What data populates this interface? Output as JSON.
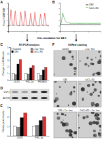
{
  "chart_data": [
    {
      "type": "line",
      "y_label": "Fura-2 F340/F380",
      "tick_labels": false,
      "x": [
        0,
        1,
        2,
        3,
        4,
        5,
        6,
        7,
        8,
        9,
        10,
        11,
        12,
        13,
        14,
        15,
        16,
        17,
        18,
        19,
        20,
        21,
        22,
        23,
        24,
        25,
        26,
        27,
        28,
        29
      ],
      "xlim": [
        0,
        29
      ],
      "xticks": [
        0,
        10,
        20
      ],
      "ylim": [
        0,
        2.5
      ],
      "yticks": [
        0,
        0.5,
        1,
        1.5,
        2,
        2.5
      ],
      "series": [
        {
          "color": "#e03030",
          "values": [
            0.5,
            0.5,
            1.9,
            0.6,
            0.5,
            1.8,
            0.6,
            0.5,
            0.5,
            1.7,
            0.6,
            0.5,
            1.8,
            0.6,
            0.5,
            0.5,
            1.6,
            0.6,
            0.5,
            1.7,
            0.6,
            0.5,
            0.5,
            1.5,
            0.6,
            0.5,
            1.6,
            0.6,
            0.5,
            0.5
          ]
        },
        {
          "color": "#8a8a8a",
          "values": [
            0.5,
            0.5,
            0.55,
            0.52,
            0.5,
            0.55,
            0.52,
            0.5,
            0.5,
            0.54,
            0.52,
            0.5,
            0.55,
            0.52,
            0.5,
            0.5,
            0.53,
            0.52,
            0.5,
            0.54,
            0.52,
            0.5,
            0.5,
            0.53,
            0.52,
            0.5,
            0.53,
            0.52,
            0.5,
            0.5
          ]
        }
      ]
    },
    {
      "type": "line",
      "tick_labels": false,
      "legend": "upper right",
      "x": [
        0,
        1,
        2,
        3,
        4,
        5,
        6,
        7,
        8,
        9,
        10,
        11,
        12,
        13,
        14,
        15,
        16,
        17,
        18,
        19,
        20,
        21,
        22,
        23,
        24,
        25,
        26,
        27,
        28,
        29
      ],
      "xlim": [
        0,
        29
      ],
      "xticks": [
        0,
        10,
        20
      ],
      "ylim": [
        0,
        2.5
      ],
      "yticks": [
        0,
        0.5,
        1,
        1.5,
        2,
        2.5
      ],
      "series": [
        {
          "name": "CBX",
          "color": "#000000",
          "values": [
            0.6,
            0.62,
            0.6,
            0.61,
            0.6,
            0.59,
            0.6,
            0.6,
            0.61,
            0.6,
            0.6,
            0.59,
            0.6,
            0.6,
            0.61,
            0.6,
            0.6,
            0.6,
            0.59,
            0.6,
            0.6,
            0.61,
            0.6,
            0.6,
            0.6,
            0.59,
            0.6,
            0.6,
            0.6,
            0.6
          ]
        },
        {
          "name": "CoCl₂-KD",
          "color": "#2ca02c",
          "values": [
            0.7,
            0.7,
            1.6,
            1.2,
            0.9,
            0.8,
            0.75,
            0.72,
            0.7,
            0.7,
            0.7,
            0.71,
            0.7,
            0.7,
            0.69,
            0.7,
            0.7,
            0.7,
            0.71,
            0.7,
            0.7,
            0.7,
            0.69,
            0.7,
            0.7,
            0.7,
            0.7,
            0.71,
            0.7,
            0.7
          ]
        }
      ]
    },
    {
      "type": "bar",
      "title": "RT-PCR analysis",
      "y_label": "Changes in mRNA levels",
      "legend": "top",
      "categories": [
        "UCP1",
        "PGC-1α",
        "PRDM16"
      ],
      "ylim": [
        0,
        5
      ],
      "yticks": [
        0,
        1,
        2,
        3,
        4,
        5
      ],
      "series": [
        {
          "name": "Control",
          "color": "#ffffff",
          "values": [
            1,
            1,
            1
          ]
        },
        {
          "name": "+ Ca²⁺ free",
          "color": "#888888",
          "values": [
            0.8,
            0.9,
            0.7
          ]
        },
        {
          "name": "CBX",
          "color": "#000000",
          "values": [
            2.4,
            1.8,
            1.5
          ]
        },
        {
          "name": "CoCl₂-KD",
          "color": "#e03030",
          "values": [
            3.1,
            2.2,
            1.9
          ]
        }
      ]
    },
    {
      "type": "bar",
      "y_label": "Relative protein levels",
      "categories": [
        "UCP1",
        "PGC-1α"
      ],
      "ylim": [
        0,
        3
      ],
      "yticks": [
        0,
        1,
        2,
        3
      ],
      "series": [
        {
          "color": "#ffffff",
          "values": [
            1,
            1
          ]
        },
        {
          "color": "#888888",
          "values": [
            0.9,
            1.1
          ]
        },
        {
          "color": "#000000",
          "values": [
            1.9,
            1.6
          ]
        },
        {
          "color": "#e03030",
          "values": [
            2.4,
            2.0
          ]
        }
      ]
    }
  ],
  "figure": {
    "panel_labels": [
      "A",
      "B",
      "C",
      "D",
      "E",
      "F"
    ],
    "arrow_text": "CO₂-incubator for 24 h",
    "blot": {
      "labels": [
        "UCP1",
        "ACTIN"
      ]
    },
    "staining": {
      "title": "OilRed staining",
      "labels": [
        "Control",
        "+ Ca²⁺ free",
        "CBX",
        "CoCl₂+KD",
        "CBX + Ca²⁺ free",
        "CoCl₂+KD + Ca²⁺ free"
      ]
    }
  }
}
